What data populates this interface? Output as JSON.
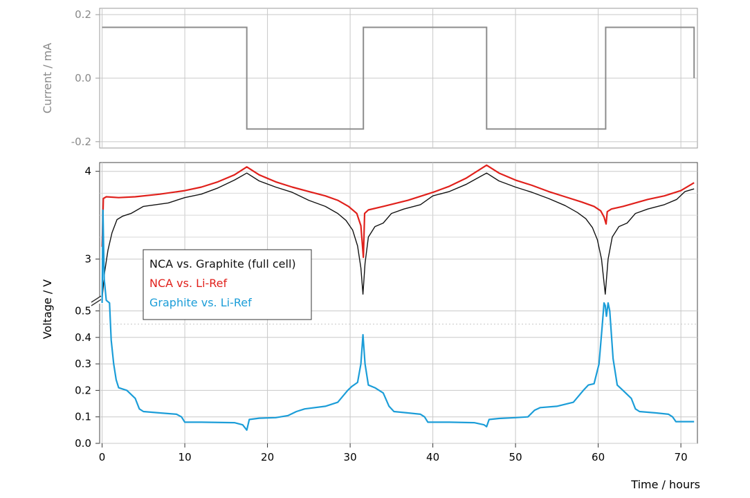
{
  "chart_data": [
    {
      "panel": "current",
      "type": "line",
      "ylabel": "Current / mA",
      "ylim": [
        -0.22,
        0.22
      ],
      "yticks": [
        0.2,
        0.0,
        -0.2
      ],
      "ytick_labels": [
        "0.2",
        "0.0",
        "-0.2"
      ],
      "xlim": [
        -0.3,
        72
      ],
      "grid": true,
      "series": [
        {
          "color": "#8c8c8c",
          "points": [
            [
              0,
              0.16
            ],
            [
              17.5,
              0.16
            ],
            [
              17.5,
              -0.16
            ],
            [
              31.6,
              -0.16
            ],
            [
              31.6,
              0.16
            ],
            [
              46.5,
              0.16
            ],
            [
              46.5,
              -0.16
            ],
            [
              60.9,
              -0.16
            ],
            [
              60.9,
              0.16
            ],
            [
              71.6,
              0.16
            ],
            [
              71.6,
              0.0
            ]
          ]
        }
      ]
    },
    {
      "panel": "voltage",
      "type": "line",
      "ylabel": "Voltage / V",
      "xlabel": "Time / hours",
      "xlim": [
        -0.3,
        72
      ],
      "xticks": [
        0,
        10,
        20,
        30,
        40,
        50,
        60,
        70
      ],
      "xtick_labels": [
        "0",
        "10",
        "20",
        "30",
        "40",
        "50",
        "60",
        "70"
      ],
      "axis_break": true,
      "upper_yticks": [
        4,
        3
      ],
      "upper_ytick_labels": [
        "4",
        "3"
      ],
      "lower_yticks": [
        0.5,
        0.4,
        0.3,
        0.2,
        0.1,
        0.0
      ],
      "lower_ytick_labels": [
        "0.5",
        "0.4",
        "0.3",
        "0.2",
        "0.1",
        "0.0"
      ],
      "legend": {
        "position": "upper-left",
        "entries": [
          {
            "label": "NCA vs. Graphite (full cell)",
            "color": "#111111"
          },
          {
            "label": "NCA vs. Li-Ref",
            "color": "#e0201b"
          },
          {
            "label": "Graphite vs. Li-Ref",
            "color": "#1b9dd8"
          }
        ]
      },
      "series": [
        {
          "name": "NCA vs. Graphite (full cell)",
          "color": "#111111",
          "points": [
            [
              0,
              2.55
            ],
            [
              0.3,
              2.85
            ],
            [
              0.7,
              3.1
            ],
            [
              1.2,
              3.3
            ],
            [
              1.8,
              3.45
            ],
            [
              2.5,
              3.49
            ],
            [
              3.5,
              3.52
            ],
            [
              5,
              3.6
            ],
            [
              8,
              3.64
            ],
            [
              10,
              3.7
            ],
            [
              12,
              3.74
            ],
            [
              14,
              3.81
            ],
            [
              16,
              3.9
            ],
            [
              17.5,
              3.98
            ],
            [
              19,
              3.89
            ],
            [
              21,
              3.82
            ],
            [
              23,
              3.76
            ],
            [
              25,
              3.67
            ],
            [
              27,
              3.6
            ],
            [
              28.5,
              3.52
            ],
            [
              29.5,
              3.44
            ],
            [
              30.3,
              3.33
            ],
            [
              30.9,
              3.15
            ],
            [
              31.3,
              2.9
            ],
            [
              31.55,
              2.6
            ],
            [
              31.8,
              2.95
            ],
            [
              32.2,
              3.25
            ],
            [
              33,
              3.37
            ],
            [
              34,
              3.41
            ],
            [
              35,
              3.52
            ],
            [
              36.5,
              3.57
            ],
            [
              38.5,
              3.62
            ],
            [
              40,
              3.72
            ],
            [
              42,
              3.77
            ],
            [
              44,
              3.85
            ],
            [
              46.5,
              3.98
            ],
            [
              48,
              3.89
            ],
            [
              50,
              3.82
            ],
            [
              52,
              3.76
            ],
            [
              54,
              3.69
            ],
            [
              56,
              3.61
            ],
            [
              57.5,
              3.53
            ],
            [
              58.5,
              3.46
            ],
            [
              59.3,
              3.36
            ],
            [
              59.9,
              3.22
            ],
            [
              60.4,
              3.0
            ],
            [
              60.85,
              2.6
            ],
            [
              61.2,
              3.0
            ],
            [
              61.7,
              3.25
            ],
            [
              62.5,
              3.37
            ],
            [
              63.5,
              3.41
            ],
            [
              64.5,
              3.52
            ],
            [
              66,
              3.57
            ],
            [
              68,
              3.62
            ],
            [
              69.5,
              3.68
            ],
            [
              70.5,
              3.77
            ],
            [
              71.6,
              3.8
            ]
          ]
        },
        {
          "name": "NCA vs. Li-Ref",
          "color": "#e0201b",
          "points": [
            [
              0,
              3.14
            ],
            [
              0.15,
              3.69
            ],
            [
              0.5,
              3.71
            ],
            [
              2,
              3.7
            ],
            [
              4,
              3.71
            ],
            [
              7,
              3.74
            ],
            [
              10,
              3.78
            ],
            [
              12,
              3.82
            ],
            [
              14,
              3.88
            ],
            [
              16,
              3.96
            ],
            [
              17.5,
              4.05
            ],
            [
              19,
              3.96
            ],
            [
              21,
              3.88
            ],
            [
              23,
              3.82
            ],
            [
              25,
              3.77
            ],
            [
              27,
              3.72
            ],
            [
              28.5,
              3.67
            ],
            [
              29.8,
              3.6
            ],
            [
              30.8,
              3.52
            ],
            [
              31.3,
              3.38
            ],
            [
              31.6,
              3.02
            ],
            [
              31.75,
              3.52
            ],
            [
              32.2,
              3.56
            ],
            [
              34,
              3.6
            ],
            [
              37,
              3.67
            ],
            [
              40,
              3.76
            ],
            [
              42,
              3.83
            ],
            [
              44,
              3.92
            ],
            [
              46.5,
              4.07
            ],
            [
              48,
              3.98
            ],
            [
              50,
              3.9
            ],
            [
              52,
              3.84
            ],
            [
              54,
              3.77
            ],
            [
              56,
              3.71
            ],
            [
              58,
              3.65
            ],
            [
              59.5,
              3.6
            ],
            [
              60.3,
              3.55
            ],
            [
              60.7,
              3.48
            ],
            [
              60.95,
              3.4
            ],
            [
              61.1,
              3.54
            ],
            [
              61.6,
              3.57
            ],
            [
              63,
              3.6
            ],
            [
              66,
              3.68
            ],
            [
              68,
              3.72
            ],
            [
              70,
              3.78
            ],
            [
              71.6,
              3.87
            ]
          ]
        },
        {
          "name": "Graphite vs. Li-Ref",
          "color": "#1b9dd8",
          "points": [
            [
              0,
              0.53
            ],
            [
              0.1,
              0.88
            ],
            [
              0.25,
              0.62
            ],
            [
              0.5,
              0.54
            ],
            [
              0.9,
              0.53
            ],
            [
              1.1,
              0.39
            ],
            [
              1.4,
              0.3
            ],
            [
              1.7,
              0.24
            ],
            [
              2,
              0.21
            ],
            [
              3,
              0.2
            ],
            [
              4,
              0.17
            ],
            [
              4.5,
              0.13
            ],
            [
              5,
              0.12
            ],
            [
              7,
              0.115
            ],
            [
              9,
              0.11
            ],
            [
              9.6,
              0.1
            ],
            [
              10,
              0.08
            ],
            [
              12,
              0.08
            ],
            [
              16,
              0.078
            ],
            [
              17,
              0.07
            ],
            [
              17.5,
              0.05
            ],
            [
              17.8,
              0.09
            ],
            [
              19,
              0.095
            ],
            [
              21,
              0.097
            ],
            [
              22.5,
              0.105
            ],
            [
              23.5,
              0.12
            ],
            [
              24.5,
              0.13
            ],
            [
              27,
              0.14
            ],
            [
              28.5,
              0.155
            ],
            [
              29.7,
              0.2
            ],
            [
              30.2,
              0.215
            ],
            [
              30.9,
              0.23
            ],
            [
              31.3,
              0.3
            ],
            [
              31.55,
              0.41
            ],
            [
              31.8,
              0.3
            ],
            [
              32.2,
              0.22
            ],
            [
              33,
              0.21
            ],
            [
              34,
              0.19
            ],
            [
              34.7,
              0.14
            ],
            [
              35.3,
              0.12
            ],
            [
              37,
              0.115
            ],
            [
              38.5,
              0.11
            ],
            [
              39,
              0.1
            ],
            [
              39.4,
              0.08
            ],
            [
              42,
              0.08
            ],
            [
              45,
              0.078
            ],
            [
              46.2,
              0.07
            ],
            [
              46.5,
              0.063
            ],
            [
              46.8,
              0.09
            ],
            [
              48,
              0.094
            ],
            [
              50,
              0.097
            ],
            [
              51.5,
              0.1
            ],
            [
              52.3,
              0.125
            ],
            [
              53,
              0.135
            ],
            [
              55,
              0.14
            ],
            [
              57,
              0.155
            ],
            [
              58.2,
              0.2
            ],
            [
              58.8,
              0.22
            ],
            [
              59.5,
              0.225
            ],
            [
              60.1,
              0.3
            ],
            [
              60.5,
              0.45
            ],
            [
              60.7,
              0.53
            ],
            [
              60.85,
              0.52
            ],
            [
              61,
              0.48
            ],
            [
              61.2,
              0.53
            ],
            [
              61.4,
              0.5
            ],
            [
              61.8,
              0.32
            ],
            [
              62.3,
              0.22
            ],
            [
              63,
              0.2
            ],
            [
              64,
              0.17
            ],
            [
              64.5,
              0.13
            ],
            [
              65,
              0.12
            ],
            [
              67,
              0.115
            ],
            [
              68.5,
              0.11
            ],
            [
              69,
              0.1
            ],
            [
              69.4,
              0.082
            ],
            [
              71.6,
              0.082
            ]
          ]
        }
      ]
    }
  ]
}
